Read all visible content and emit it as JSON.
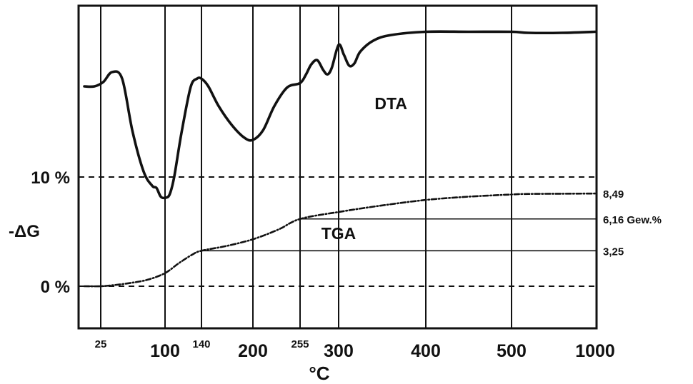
{
  "chart_data": {
    "type": "line",
    "xlabel": "°C",
    "ylabel": "-ΔG",
    "x_ticks": [
      {
        "value": 25,
        "label": "25",
        "size": "small"
      },
      {
        "value": 100,
        "label": "100",
        "size": "big"
      },
      {
        "value": 140,
        "label": "140",
        "size": "small"
      },
      {
        "value": 200,
        "label": "200",
        "size": "big"
      },
      {
        "value": 255,
        "label": "255",
        "size": "small"
      },
      {
        "value": 300,
        "label": "300",
        "size": "big"
      },
      {
        "value": 400,
        "label": "400",
        "size": "big"
      },
      {
        "value": 500,
        "label": "500",
        "size": "big"
      },
      {
        "value": 1000,
        "label": "1000",
        "size": "big"
      }
    ],
    "y_ticks": [
      {
        "value": 0,
        "label": "0 %"
      },
      {
        "value": 10,
        "label": "10 %"
      }
    ],
    "series": [
      {
        "name": "DTA",
        "style": "solid",
        "x": [
          12,
          20,
          28,
          38,
          50,
          62,
          75,
          85,
          90,
          95,
          100,
          105,
          110,
          118,
          128,
          135,
          140,
          148,
          160,
          175,
          190,
          200,
          212,
          225,
          240,
          255,
          262,
          268,
          275,
          282,
          287,
          292,
          300,
          306,
          312,
          318,
          325,
          340,
          360,
          400,
          450,
          500,
          600,
          800,
          1000
        ],
        "y": [
          18.3,
          18.3,
          18.7,
          19.6,
          19.0,
          14.2,
          10.5,
          9.2,
          9.0,
          8.2,
          8.1,
          8.4,
          10.0,
          14.0,
          18.2,
          19.0,
          19.0,
          18.3,
          16.5,
          14.8,
          13.6,
          13.4,
          14.3,
          16.5,
          18.2,
          18.6,
          19.4,
          20.3,
          20.7,
          19.8,
          19.4,
          20.0,
          22.1,
          21.2,
          20.2,
          20.4,
          21.5,
          22.5,
          23.0,
          23.3,
          23.3,
          23.3,
          23.2,
          23.2,
          23.3
        ]
      },
      {
        "name": "TGA",
        "style": "dashdot",
        "x": [
          12,
          25,
          40,
          60,
          80,
          100,
          115,
          130,
          140,
          170,
          200,
          230,
          255,
          300,
          350,
          400,
          450,
          500,
          600,
          800,
          1000
        ],
        "y": [
          0.0,
          0.0,
          0.1,
          0.3,
          0.6,
          1.2,
          2.1,
          2.9,
          3.25,
          3.7,
          4.3,
          5.2,
          6.16,
          6.8,
          7.4,
          7.9,
          8.2,
          8.4,
          8.45,
          8.47,
          8.49
        ]
      }
    ],
    "reference_lines": [
      {
        "y": 10,
        "style": "dashed"
      },
      {
        "y": 0,
        "style": "dashed"
      },
      {
        "y": 6.16,
        "style": "solid",
        "from_x": 255
      },
      {
        "y": 3.25,
        "style": "solid",
        "from_x": 140
      }
    ],
    "annotations": [
      {
        "text": "8,49",
        "y": 8.49
      },
      {
        "text": "6,16  Gew.%",
        "y": 6.16
      },
      {
        "text": "3,25",
        "y": 3.25
      }
    ],
    "series_labels": [
      {
        "text": "DTA",
        "x": 360,
        "y": 16.2
      },
      {
        "text": "TGA",
        "x": 300,
        "y": 4.3
      }
    ],
    "grid": true,
    "legend": "none"
  }
}
